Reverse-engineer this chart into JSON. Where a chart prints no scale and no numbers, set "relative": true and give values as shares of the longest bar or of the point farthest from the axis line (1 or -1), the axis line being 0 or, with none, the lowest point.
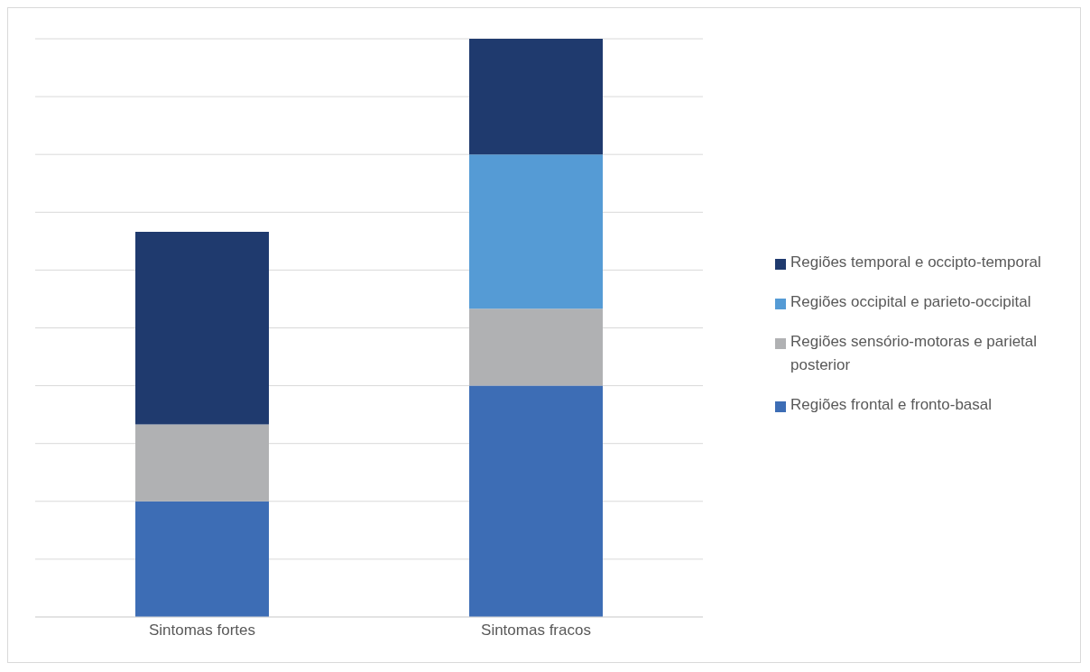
{
  "chart_data": {
    "type": "bar",
    "stacked": true,
    "relative": true,
    "categories": [
      "Sintomas fortes",
      "Sintomas fracos"
    ],
    "series": [
      {
        "name": "Regiões frontal e fronto-basal",
        "color": "#3d6db5",
        "values": [
          0.2,
          0.4
        ]
      },
      {
        "name": "Regiões sensório-motoras e parietal posterior",
        "color": "#b0b1b3",
        "values": [
          0.133,
          0.133
        ]
      },
      {
        "name": "Regiões occipital e parieto-occipital",
        "color": "#559bd5",
        "values": [
          0,
          0.267
        ]
      },
      {
        "name": "Regiões temporal e occipto-temporal",
        "color": "#1f3a6e",
        "values": [
          0.333,
          0.2
        ]
      }
    ],
    "grid": "y",
    "legend": "right"
  }
}
